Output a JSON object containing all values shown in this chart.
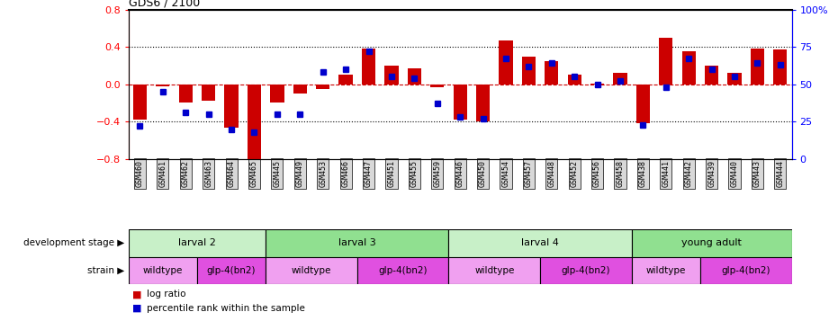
{
  "title": "GDS6 / 2100",
  "samples": [
    "GSM460",
    "GSM461",
    "GSM462",
    "GSM463",
    "GSM464",
    "GSM465",
    "GSM445",
    "GSM449",
    "GSM453",
    "GSM466",
    "GSM447",
    "GSM451",
    "GSM455",
    "GSM459",
    "GSM446",
    "GSM450",
    "GSM454",
    "GSM457",
    "GSM448",
    "GSM452",
    "GSM456",
    "GSM458",
    "GSM438",
    "GSM441",
    "GSM442",
    "GSM439",
    "GSM440",
    "GSM443",
    "GSM444"
  ],
  "log_ratio": [
    -0.38,
    -0.02,
    -0.2,
    -0.18,
    -0.47,
    -0.82,
    -0.2,
    -0.1,
    -0.05,
    0.1,
    0.38,
    0.2,
    0.17,
    -0.03,
    -0.38,
    -0.4,
    0.47,
    0.3,
    0.25,
    0.1,
    0.01,
    0.12,
    -0.42,
    0.5,
    0.35,
    0.2,
    0.12,
    0.38,
    0.37
  ],
  "percentile": [
    22,
    45,
    31,
    30,
    20,
    18,
    30,
    30,
    58,
    60,
    72,
    55,
    54,
    37,
    28,
    27,
    67,
    62,
    64,
    55,
    50,
    52,
    23,
    48,
    67,
    60,
    55,
    64,
    63
  ],
  "dev_stages": [
    {
      "label": "larval 2",
      "start": 0,
      "end": 5,
      "color": "#c8f0c8"
    },
    {
      "label": "larval 3",
      "start": 6,
      "end": 13,
      "color": "#90e090"
    },
    {
      "label": "larval 4",
      "start": 14,
      "end": 21,
      "color": "#c8f0c8"
    },
    {
      "label": "young adult",
      "start": 22,
      "end": 28,
      "color": "#90e090"
    }
  ],
  "strains": [
    {
      "label": "wildtype",
      "start": 0,
      "end": 2,
      "color": "#f0a0f0"
    },
    {
      "label": "glp-4(bn2)",
      "start": 3,
      "end": 5,
      "color": "#e050e0"
    },
    {
      "label": "wildtype",
      "start": 6,
      "end": 9,
      "color": "#f0a0f0"
    },
    {
      "label": "glp-4(bn2)",
      "start": 10,
      "end": 13,
      "color": "#e050e0"
    },
    {
      "label": "wildtype",
      "start": 14,
      "end": 17,
      "color": "#f0a0f0"
    },
    {
      "label": "glp-4(bn2)",
      "start": 18,
      "end": 21,
      "color": "#e050e0"
    },
    {
      "label": "wildtype",
      "start": 22,
      "end": 24,
      "color": "#f0a0f0"
    },
    {
      "label": "glp-4(bn2)",
      "start": 25,
      "end": 28,
      "color": "#e050e0"
    }
  ],
  "ylim": [
    -0.8,
    0.8
  ],
  "y2lim": [
    0,
    100
  ],
  "bar_color": "#cc0000",
  "dot_color": "#0000cc",
  "hline_color": "#cc0000",
  "grid_color": "#000000",
  "yticks_left": [
    -0.8,
    -0.4,
    0.0,
    0.4,
    0.8
  ],
  "yticks_right": [
    0,
    25,
    50,
    75,
    100
  ],
  "background_color": "#ffffff"
}
